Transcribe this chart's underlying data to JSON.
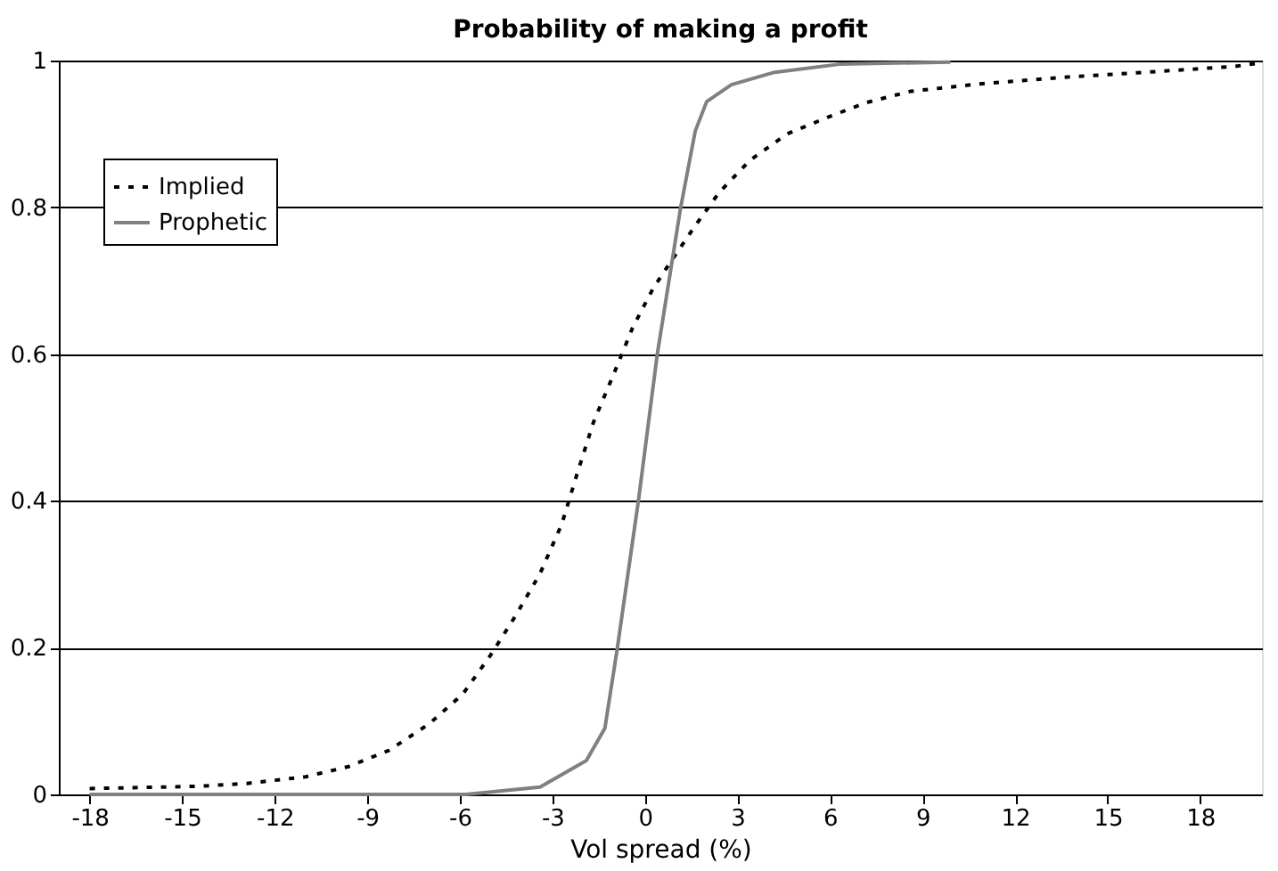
{
  "chart_data": {
    "type": "line",
    "title": "Probability of making a profit",
    "xlabel": "Vol spread (%)",
    "xlim": [
      -19,
      20
    ],
    "xticks": [
      -18,
      -15,
      -12,
      -9,
      -6,
      -3,
      0,
      3,
      6,
      9,
      12,
      15,
      18
    ],
    "ylim": [
      0,
      1
    ],
    "yticks": [
      0,
      0.2,
      0.4,
      0.6,
      0.8,
      1
    ],
    "grid": "y",
    "legend": "top left",
    "marker": "none",
    "series": [
      {
        "name": "Implied",
        "color": "#000000",
        "line_style": "dotted",
        "x": [
          -18,
          -14.5,
          -12.9,
          -11,
          -9.6,
          -8.3,
          -7.0,
          -5.9,
          -5.0,
          -4.2,
          -3.4,
          -2.7,
          -2.25,
          -1.67,
          -1.0,
          -0.4,
          0.27,
          0.76,
          1.63,
          2.4,
          3.4,
          4.6,
          6.0,
          7.2,
          8.6,
          10.8,
          13.5,
          16.2,
          19.1,
          20
        ],
        "values": [
          0.008,
          0.011,
          0.015,
          0.024,
          0.038,
          0.06,
          0.096,
          0.137,
          0.19,
          0.243,
          0.301,
          0.368,
          0.43,
          0.507,
          0.574,
          0.636,
          0.69,
          0.721,
          0.775,
          0.82,
          0.864,
          0.9,
          0.924,
          0.943,
          0.958,
          0.968,
          0.977,
          0.984,
          0.992,
          0.997
        ]
      },
      {
        "name": "Prophetic",
        "color": "#808080",
        "line_style": "solid",
        "x": [
          -18,
          -5.8,
          -3.4,
          -1.9,
          -1.3,
          -0.9,
          -0.2,
          0.4,
          1.15,
          1.63,
          2.0,
          2.8,
          4.2,
          6.3,
          9.9
        ],
        "values": [
          0.0,
          0.0,
          0.01,
          0.046,
          0.09,
          0.198,
          0.404,
          0.6,
          0.798,
          0.904,
          0.944,
          0.967,
          0.984,
          0.995,
          0.998
        ]
      }
    ]
  }
}
